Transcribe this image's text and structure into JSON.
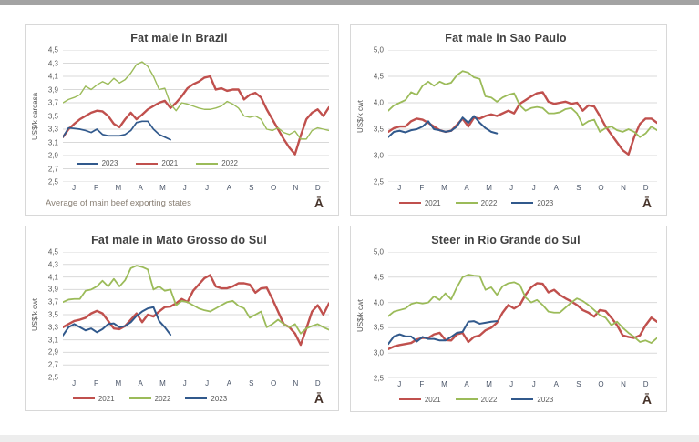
{
  "page": {
    "top_bar_color": "#a3a3a3",
    "bottom_bar_color": "#ededed",
    "logo_glyph": "Ā"
  },
  "palette": {
    "red": "#C0504D",
    "green": "#9BBB59",
    "blue": "#31598C",
    "grid": "#d9d9d9"
  },
  "chart_data": [
    {
      "type": "line",
      "title": "Fat male in Brazil",
      "ylabel": "US$/k carcasa",
      "ylim": [
        2.5,
        4.5
      ],
      "yticks": [
        "4,5",
        "4,3",
        "4,1",
        "3,9",
        "3,7",
        "3,5",
        "3,3",
        "3,1",
        "2,9",
        "2,7",
        "2,5"
      ],
      "categories": [
        "J",
        "F",
        "M",
        "A",
        "M",
        "J",
        "J",
        "A",
        "S",
        "O",
        "N",
        "D"
      ],
      "points": 48,
      "legend_position": "inside",
      "legend_order": [
        "2023",
        "2021",
        "2022"
      ],
      "footnote": "Average  of main beef exporting states",
      "series": [
        {
          "name": "2021",
          "color_key": "red",
          "width": 2.4,
          "values": [
            3.18,
            3.3,
            3.38,
            3.45,
            3.5,
            3.55,
            3.58,
            3.57,
            3.5,
            3.38,
            3.33,
            3.45,
            3.55,
            3.45,
            3.52,
            3.6,
            3.65,
            3.7,
            3.73,
            3.62,
            3.7,
            3.8,
            3.92,
            3.98,
            4.02,
            4.08,
            4.1,
            3.9,
            3.92,
            3.88,
            3.9,
            3.9,
            3.75,
            3.82,
            3.85,
            3.78,
            3.6,
            3.45,
            3.3,
            3.15,
            3.02,
            2.92,
            3.2,
            3.45,
            3.55,
            3.6,
            3.5,
            3.63
          ]
        },
        {
          "name": "2022",
          "color_key": "green",
          "width": 1.4,
          "values": [
            3.7,
            3.75,
            3.78,
            3.82,
            3.95,
            3.9,
            3.97,
            4.02,
            3.98,
            4.07,
            4.0,
            4.05,
            4.15,
            4.28,
            4.32,
            4.25,
            4.1,
            3.9,
            3.92,
            3.68,
            3.58,
            3.7,
            3.68,
            3.65,
            3.62,
            3.6,
            3.6,
            3.62,
            3.65,
            3.72,
            3.68,
            3.62,
            3.5,
            3.48,
            3.5,
            3.45,
            3.3,
            3.28,
            3.32,
            3.25,
            3.22,
            3.27,
            3.15,
            3.15,
            3.28,
            3.32,
            3.3,
            3.28
          ]
        },
        {
          "name": "2023",
          "color_key": "blue",
          "width": 1.7,
          "values": [
            3.18,
            3.32,
            3.31,
            3.3,
            3.28,
            3.25,
            3.3,
            3.22,
            3.2,
            3.2,
            3.2,
            3.22,
            3.28,
            3.4,
            3.42,
            3.42,
            3.3,
            3.22,
            3.18,
            3.14
          ]
        }
      ]
    },
    {
      "type": "line",
      "title": "Fat male in Sao Paulo",
      "ylabel": "US$/k cwt",
      "ylim": [
        2.5,
        5.0
      ],
      "yticks": [
        "5,0",
        "4,5",
        "4,0",
        "3,5",
        "3,0",
        "2,5"
      ],
      "categories": [
        "J",
        "F",
        "M",
        "A",
        "M",
        "J",
        "J",
        "A",
        "S",
        "O",
        "N",
        "D"
      ],
      "points": 48,
      "legend_position": "bottom",
      "legend_order": [
        "2021",
        "2022",
        "2023"
      ],
      "footnote": "",
      "series": [
        {
          "name": "2021",
          "color_key": "red",
          "width": 2.4,
          "values": [
            3.45,
            3.52,
            3.55,
            3.55,
            3.65,
            3.7,
            3.68,
            3.62,
            3.55,
            3.48,
            3.45,
            3.47,
            3.58,
            3.7,
            3.55,
            3.72,
            3.7,
            3.75,
            3.78,
            3.75,
            3.8,
            3.85,
            3.8,
            3.98,
            4.05,
            4.12,
            4.18,
            4.2,
            4.02,
            3.98,
            4.0,
            4.02,
            3.98,
            4.0,
            3.85,
            3.95,
            3.93,
            3.75,
            3.55,
            3.4,
            3.25,
            3.1,
            3.02,
            3.35,
            3.6,
            3.7,
            3.7,
            3.62
          ]
        },
        {
          "name": "2022",
          "color_key": "green",
          "width": 1.8,
          "values": [
            3.85,
            3.95,
            4.0,
            4.05,
            4.2,
            4.15,
            4.32,
            4.4,
            4.32,
            4.4,
            4.35,
            4.38,
            4.52,
            4.6,
            4.57,
            4.48,
            4.45,
            4.12,
            4.1,
            4.02,
            4.1,
            4.15,
            4.18,
            3.95,
            3.85,
            3.9,
            3.92,
            3.9,
            3.8,
            3.8,
            3.82,
            3.88,
            3.9,
            3.8,
            3.58,
            3.65,
            3.68,
            3.45,
            3.52,
            3.55,
            3.48,
            3.45,
            3.5,
            3.45,
            3.35,
            3.42,
            3.55,
            3.48
          ]
        },
        {
          "name": "2023",
          "color_key": "blue",
          "width": 2.0,
          "values": [
            3.35,
            3.45,
            3.47,
            3.44,
            3.48,
            3.5,
            3.55,
            3.65,
            3.5,
            3.48,
            3.45,
            3.47,
            3.55,
            3.72,
            3.62,
            3.75,
            3.62,
            3.52,
            3.45,
            3.42
          ]
        }
      ]
    },
    {
      "type": "line",
      "title": "Fat male in Mato Grosso do Sul",
      "ylabel": "US$/k cwt",
      "ylim": [
        2.5,
        4.5
      ],
      "yticks": [
        "4,5",
        "4,3",
        "4,1",
        "3,9",
        "3,7",
        "3,5",
        "3,3",
        "3,1",
        "2,9",
        "2,7",
        "2,5"
      ],
      "categories": [
        "J",
        "F",
        "M",
        "A",
        "M",
        "J",
        "J",
        "A",
        "S",
        "O",
        "N",
        "D"
      ],
      "points": 48,
      "legend_position": "bottom",
      "legend_order": [
        "2021",
        "2022",
        "2023"
      ],
      "footnote": "",
      "series": [
        {
          "name": "2021",
          "color_key": "red",
          "width": 2.4,
          "values": [
            3.3,
            3.35,
            3.4,
            3.42,
            3.45,
            3.52,
            3.56,
            3.52,
            3.4,
            3.28,
            3.27,
            3.32,
            3.42,
            3.52,
            3.38,
            3.5,
            3.47,
            3.55,
            3.62,
            3.63,
            3.68,
            3.75,
            3.7,
            3.88,
            3.98,
            4.08,
            4.13,
            3.95,
            3.92,
            3.92,
            3.95,
            4.0,
            4.0,
            3.98,
            3.85,
            3.92,
            3.93,
            3.75,
            3.55,
            3.35,
            3.3,
            3.2,
            3.02,
            3.28,
            3.55,
            3.65,
            3.5,
            3.68
          ]
        },
        {
          "name": "2022",
          "color_key": "green",
          "width": 1.8,
          "values": [
            3.7,
            3.74,
            3.75,
            3.75,
            3.88,
            3.9,
            3.95,
            4.04,
            3.95,
            4.07,
            3.95,
            4.05,
            4.24,
            4.28,
            4.26,
            4.22,
            3.9,
            3.95,
            3.88,
            3.9,
            3.65,
            3.72,
            3.7,
            3.65,
            3.6,
            3.57,
            3.55,
            3.6,
            3.65,
            3.7,
            3.72,
            3.64,
            3.6,
            3.45,
            3.5,
            3.55,
            3.3,
            3.35,
            3.42,
            3.35,
            3.3,
            3.35,
            3.2,
            3.28,
            3.32,
            3.35,
            3.3,
            3.26
          ]
        },
        {
          "name": "2023",
          "color_key": "blue",
          "width": 2.0,
          "values": [
            3.17,
            3.3,
            3.35,
            3.3,
            3.25,
            3.28,
            3.22,
            3.27,
            3.35,
            3.36,
            3.3,
            3.32,
            3.38,
            3.48,
            3.55,
            3.6,
            3.62,
            3.4,
            3.3,
            3.18
          ]
        }
      ]
    },
    {
      "type": "line",
      "title": "Steer  in Rio Grande do Sul",
      "ylabel": "US$/k cwt",
      "ylim": [
        2.5,
        5.0
      ],
      "yticks": [
        "5,0",
        "4,5",
        "4,0",
        "3,5",
        "3,0",
        "2,5"
      ],
      "categories": [
        "J",
        "F",
        "M",
        "A",
        "M",
        "J",
        "J",
        "A",
        "S",
        "O",
        "N",
        "D"
      ],
      "points": 48,
      "legend_position": "bottom",
      "legend_order": [
        "2021",
        "2022",
        "2023"
      ],
      "footnote": "",
      "series": [
        {
          "name": "2021",
          "color_key": "red",
          "width": 2.4,
          "values": [
            3.08,
            3.13,
            3.16,
            3.18,
            3.2,
            3.27,
            3.3,
            3.3,
            3.37,
            3.4,
            3.26,
            3.25,
            3.37,
            3.4,
            3.22,
            3.32,
            3.35,
            3.45,
            3.5,
            3.6,
            3.8,
            3.95,
            3.88,
            3.95,
            4.15,
            4.3,
            4.38,
            4.37,
            4.2,
            4.25,
            4.15,
            4.08,
            4.02,
            3.95,
            3.85,
            3.8,
            3.72,
            3.85,
            3.83,
            3.7,
            3.55,
            3.35,
            3.32,
            3.3,
            3.35,
            3.55,
            3.7,
            3.62
          ]
        },
        {
          "name": "2022",
          "color_key": "green",
          "width": 1.8,
          "values": [
            3.73,
            3.82,
            3.85,
            3.88,
            3.97,
            4.0,
            3.98,
            4.0,
            4.12,
            4.05,
            4.18,
            4.06,
            4.3,
            4.5,
            4.55,
            4.53,
            4.52,
            4.25,
            4.3,
            4.15,
            4.32,
            4.38,
            4.4,
            4.35,
            4.1,
            4.0,
            4.05,
            3.95,
            3.82,
            3.8,
            3.8,
            3.9,
            4.0,
            4.08,
            4.03,
            3.95,
            3.85,
            3.75,
            3.7,
            3.55,
            3.62,
            3.5,
            3.4,
            3.32,
            3.22,
            3.25,
            3.2,
            3.3
          ]
        },
        {
          "name": "2023",
          "color_key": "blue",
          "width": 2.0,
          "values": [
            3.18,
            3.33,
            3.37,
            3.33,
            3.33,
            3.23,
            3.32,
            3.28,
            3.28,
            3.25,
            3.25,
            3.32,
            3.4,
            3.42,
            3.62,
            3.63,
            3.58,
            3.6,
            3.62,
            3.63
          ]
        }
      ]
    }
  ]
}
